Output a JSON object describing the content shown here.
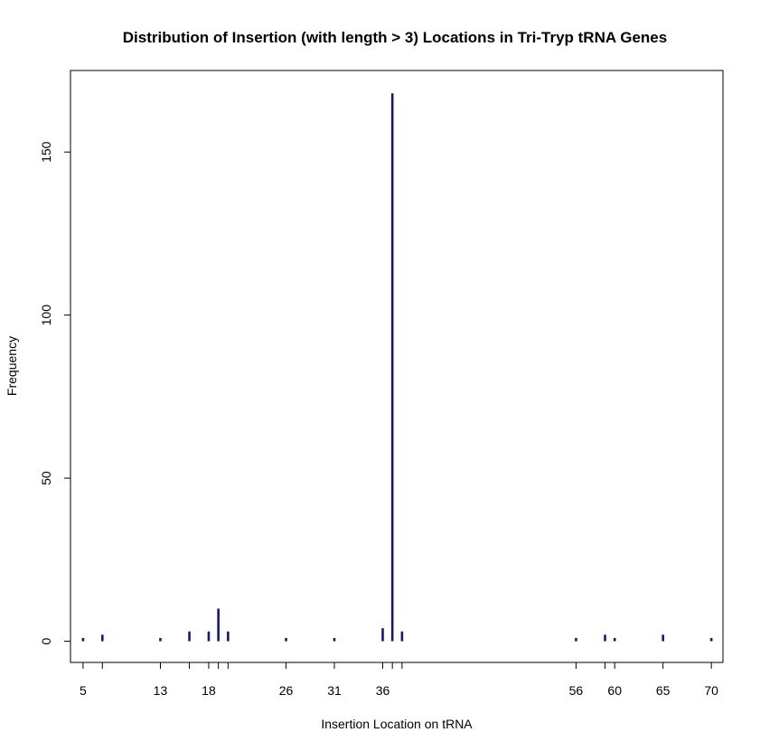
{
  "chart_data": {
    "type": "bar",
    "title": "Distribution of Insertion (with length > 3) Locations in Tri-Tryp tRNA Genes",
    "xlabel": "Insertion Location on tRNA",
    "ylabel": "Frequency",
    "xlim": [
      3.7,
      71.2
    ],
    "ylim": [
      -6.5,
      175
    ],
    "x_ticks": [
      5,
      7,
      13,
      16,
      18,
      19,
      20,
      26,
      31,
      36,
      37,
      38,
      56,
      59,
      60,
      65,
      70
    ],
    "x_tick_labels": [
      {
        "x": 5,
        "label": "5"
      },
      {
        "x": 13,
        "label": "13"
      },
      {
        "x": 18,
        "label": "18"
      },
      {
        "x": 26,
        "label": "26"
      },
      {
        "x": 31,
        "label": "31"
      },
      {
        "x": 36,
        "label": "36"
      },
      {
        "x": 56,
        "label": "56"
      },
      {
        "x": 60,
        "label": "60"
      },
      {
        "x": 65,
        "label": "65"
      },
      {
        "x": 70,
        "label": "70"
      }
    ],
    "y_ticks": [
      0,
      50,
      100,
      150
    ],
    "y_tick_labels": [
      "0",
      "50",
      "100",
      "150"
    ],
    "x": [
      5,
      7,
      13,
      16,
      18,
      19,
      20,
      26,
      31,
      36,
      37,
      38,
      56,
      59,
      60,
      65,
      70
    ],
    "values": [
      1,
      2,
      1,
      3,
      3,
      10,
      3,
      1,
      1,
      4,
      168,
      3,
      1,
      2,
      1,
      2,
      1
    ],
    "bar_color": "#191970",
    "grid": false
  }
}
